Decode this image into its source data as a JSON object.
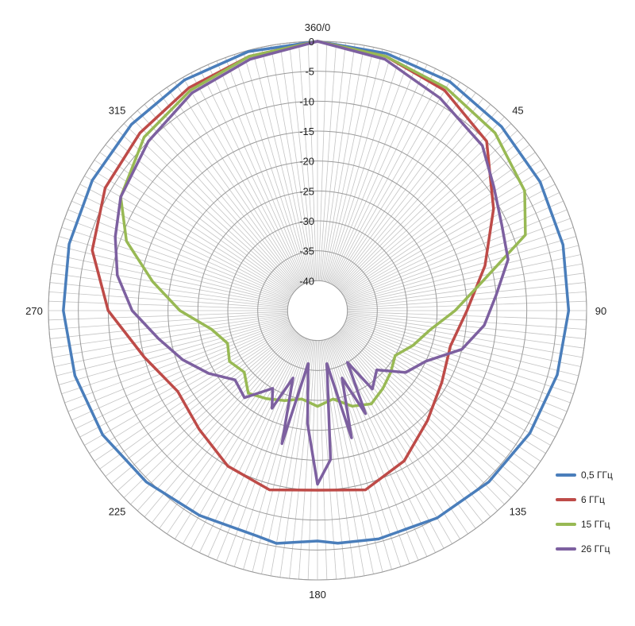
{
  "chart_data": {
    "type": "radar",
    "angle_labels": [
      "360/0",
      "45",
      "90",
      "135",
      "180",
      "225",
      "270",
      "315"
    ],
    "radial_ticks": [
      0,
      -5,
      -10,
      -15,
      -20,
      -25,
      -30,
      -35,
      -40
    ],
    "rlim": [
      -45,
      0
    ],
    "grid": true,
    "legend_position": "bottom-right",
    "series": [
      {
        "name": "0,5 ГГц",
        "color": "#4a7ebb",
        "angles": [
          0,
          15,
          30,
          45,
          60,
          75,
          90,
          105,
          120,
          135,
          150,
          165,
          175,
          180,
          190,
          195,
          210,
          225,
          240,
          255,
          270,
          285,
          300,
          315,
          330,
          345,
          360
        ],
        "values": [
          0,
          -0.5,
          -0.8,
          -1.5,
          -2,
          -2.5,
          -3,
          -3.5,
          -4,
          -4.5,
          -5,
          -5.5,
          -6,
          -6.5,
          -5.5,
          -6,
          -5.5,
          -4.5,
          -3.5,
          -3,
          -2.5,
          -2,
          -1.5,
          -1,
          -0.5,
          -0.2,
          0
        ]
      },
      {
        "name": "6 ГГц",
        "color": "#be4b48",
        "angles": [
          0,
          15,
          30,
          45,
          60,
          75,
          90,
          105,
          120,
          135,
          150,
          165,
          180,
          195,
          210,
          225,
          240,
          255,
          270,
          285,
          300,
          315,
          330,
          345,
          360
        ],
        "values": [
          0,
          -1,
          -2.5,
          -5,
          -11,
          -16,
          -20,
          -22,
          -21,
          -19,
          -16,
          -14,
          -15,
          -14,
          -15,
          -17,
          -18,
          -15,
          -10,
          -6,
          -4,
          -3,
          -2,
          -1,
          0
        ]
      },
      {
        "name": "15 ГГц",
        "color": "#98b954",
        "angles": [
          0,
          15,
          30,
          45,
          60,
          70,
          80,
          90,
          100,
          110,
          120,
          130,
          140,
          150,
          160,
          170,
          180,
          190,
          200,
          210,
          220,
          230,
          240,
          250,
          260,
          270,
          280,
          290,
          300,
          315,
          330,
          345,
          360
        ],
        "values": [
          0,
          -1,
          -2,
          -3,
          -5,
          -8,
          -17,
          -22,
          -26,
          -28,
          -30,
          -29,
          -28,
          -27,
          -28,
          -30,
          -29,
          -30,
          -29,
          -28,
          -27,
          -29,
          -28,
          -29,
          -27,
          -22,
          -17,
          -11,
          -7,
          -4,
          -2.5,
          -1,
          0
        ]
      },
      {
        "name": "26 ГГц",
        "color": "#7d60a0",
        "angles": [
          0,
          15,
          30,
          45,
          55,
          65,
          75,
          85,
          95,
          105,
          115,
          125,
          135,
          145,
          150,
          155,
          160,
          165,
          170,
          175,
          180,
          185,
          190,
          195,
          200,
          205,
          210,
          220,
          230,
          240,
          250,
          260,
          270,
          280,
          290,
          300,
          315,
          330,
          345,
          360
        ],
        "values": [
          0,
          -1.5,
          -4,
          -6,
          -9,
          -11,
          -12,
          -15,
          -17,
          -20,
          -25,
          -27,
          -31,
          -29,
          -35,
          -26,
          -33,
          -23,
          -36,
          -20,
          -16,
          -26,
          -36,
          -22,
          -33,
          -27,
          -30,
          -26,
          -27,
          -24,
          -21,
          -18,
          -14,
          -11,
          -9,
          -7,
          -5,
          -3,
          -1.5,
          0
        ]
      }
    ]
  }
}
